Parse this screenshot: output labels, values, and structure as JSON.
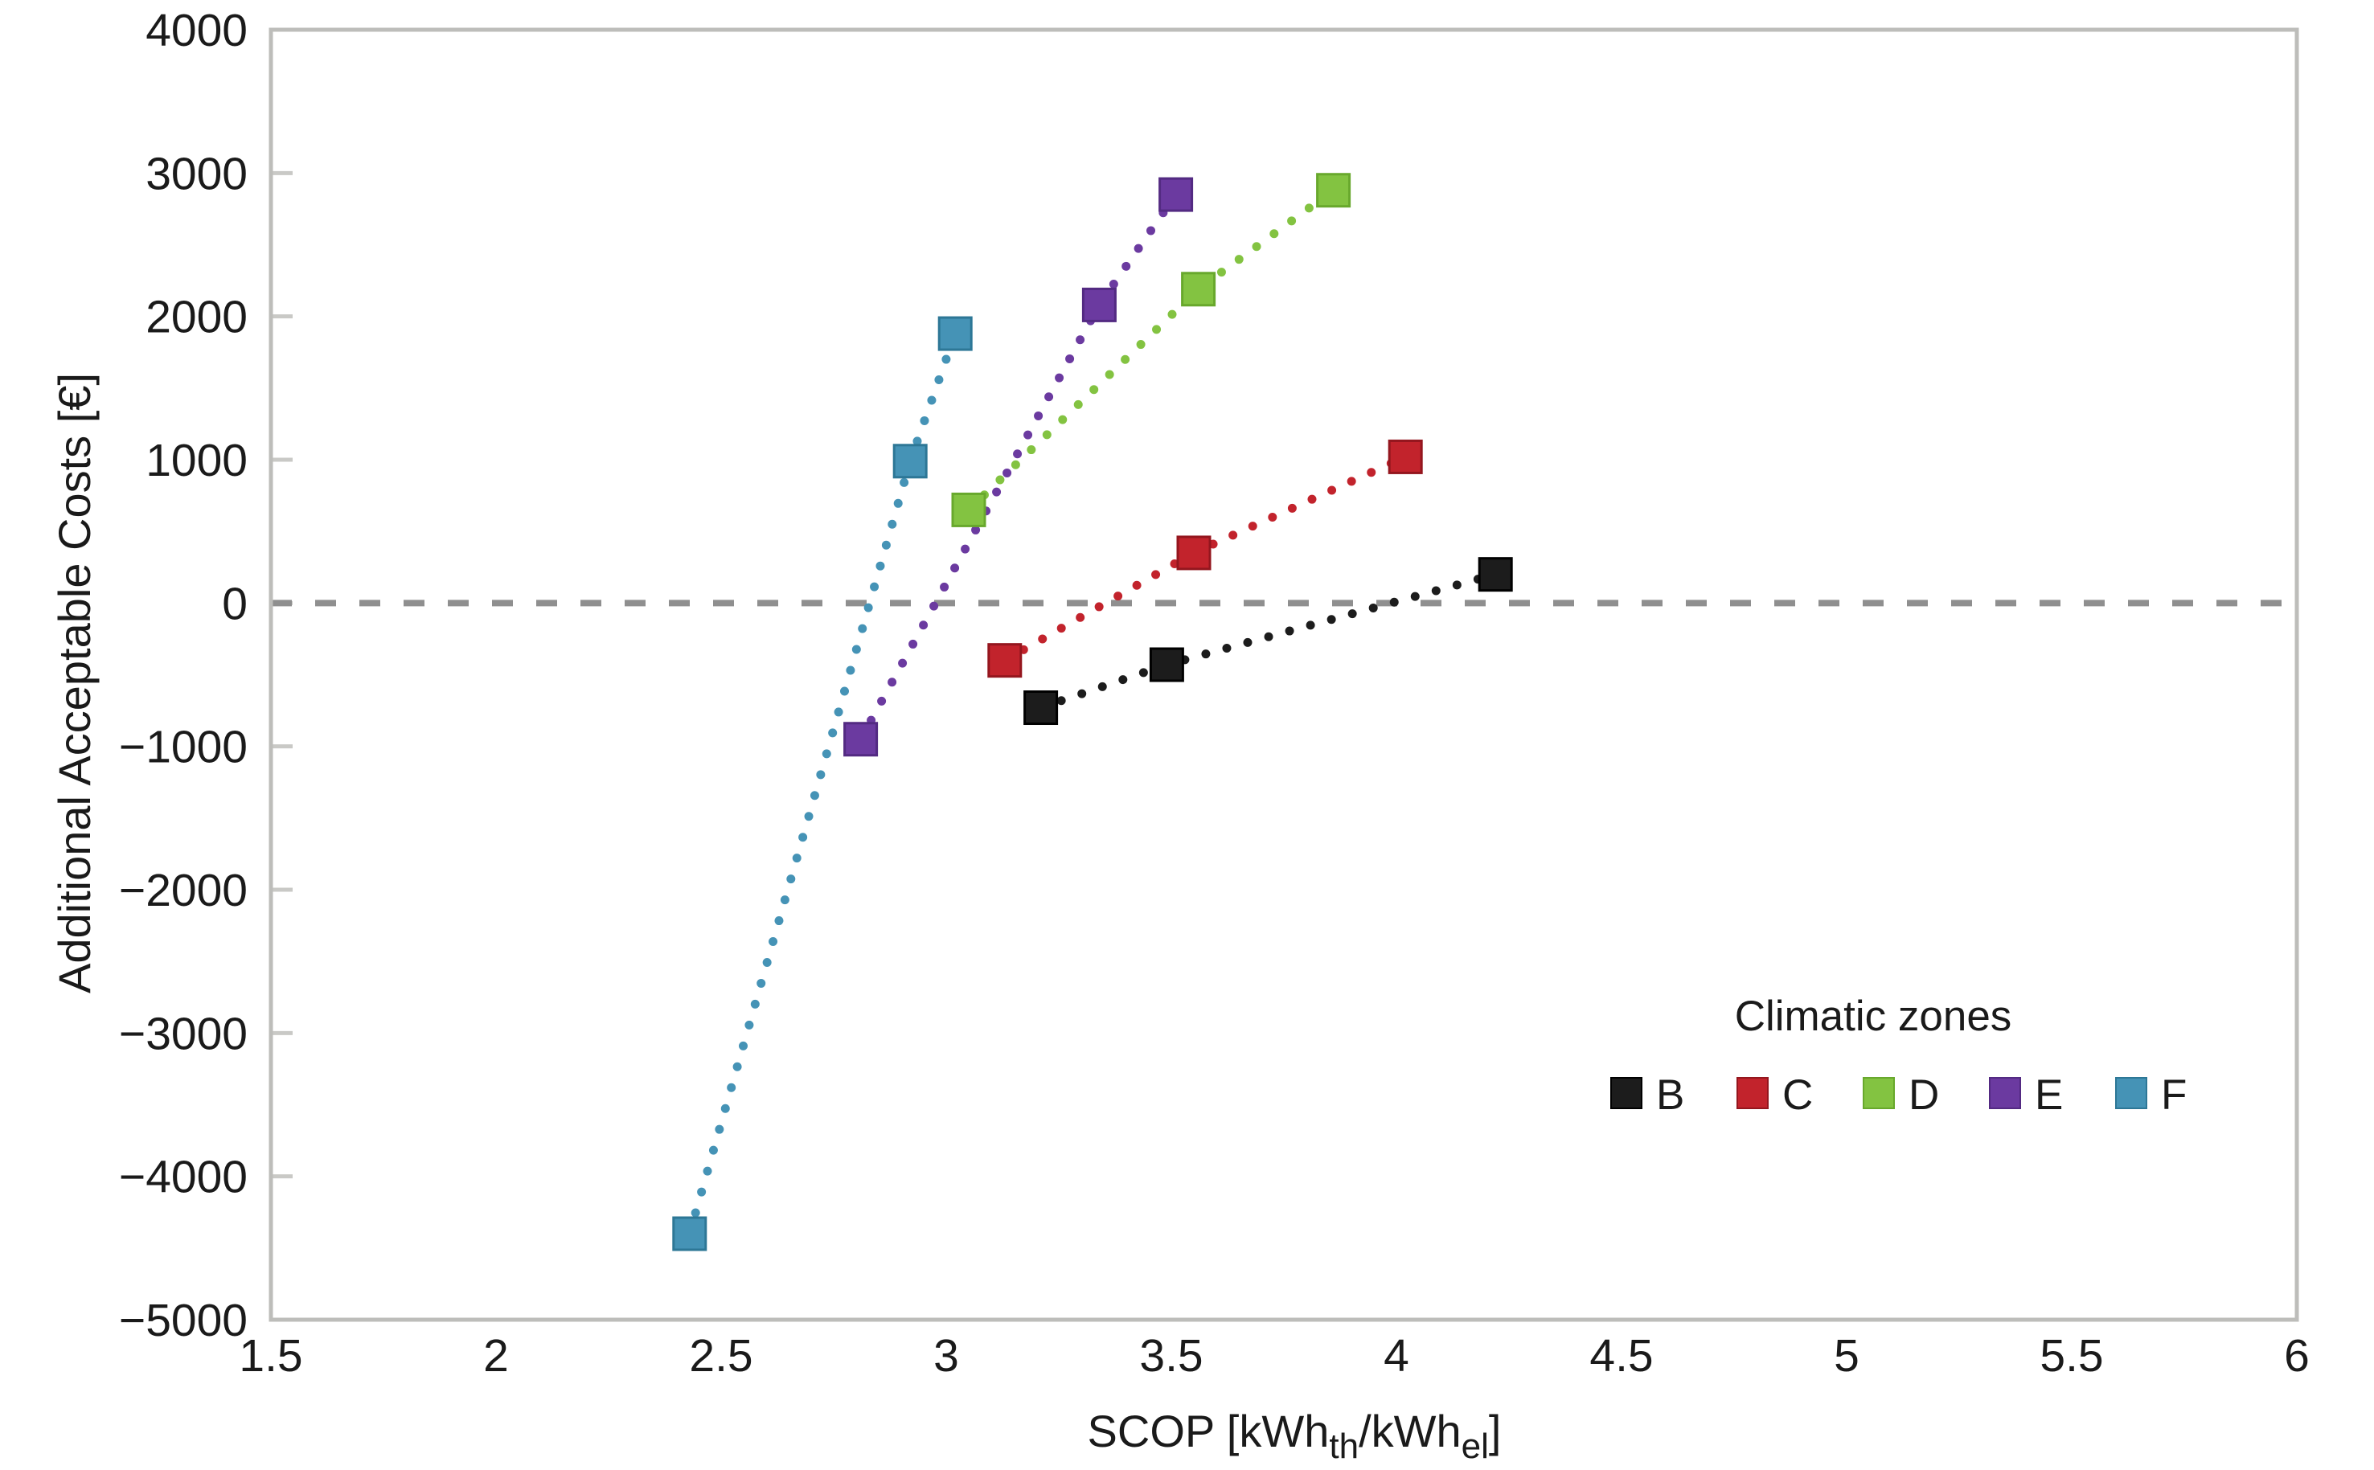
{
  "figure": {
    "background": "#ffffff",
    "frame_color": "#bdbdba",
    "tick_color": "#c9c9c6",
    "text_color": "#1a1a1a"
  },
  "chart_data": {
    "type": "scatter",
    "title": "",
    "xlabel": "SCOP [kWhth/kWhel]",
    "xlabel_parts": [
      {
        "text": "SCOP [kWh",
        "sub": false
      },
      {
        "text": "th",
        "sub": true
      },
      {
        "text": "/kWh",
        "sub": false
      },
      {
        "text": "el",
        "sub": true
      },
      {
        "text": "]",
        "sub": false
      }
    ],
    "ylabel": "Additional Acceptable Costs [€]",
    "xlim": [
      1.5,
      6
    ],
    "ylim": [
      -5000,
      4000
    ],
    "grid": false,
    "xticks": [
      {
        "v": 1.5,
        "label": "1.5"
      },
      {
        "v": 2,
        "label": "2"
      },
      {
        "v": 2.5,
        "label": "2.5"
      },
      {
        "v": 3,
        "label": "3"
      },
      {
        "v": 3.5,
        "label": "3.5"
      },
      {
        "v": 4,
        "label": "4"
      },
      {
        "v": 4.5,
        "label": "4.5"
      },
      {
        "v": 5,
        "label": "5"
      },
      {
        "v": 5.5,
        "label": "5.5"
      },
      {
        "v": 6,
        "label": "6"
      }
    ],
    "yticks": [
      {
        "v": 4000,
        "label": "4000"
      },
      {
        "v": 3000,
        "label": "3000"
      },
      {
        "v": 2000,
        "label": "2000"
      },
      {
        "v": 1000,
        "label": "1000"
      },
      {
        "v": 0,
        "label": "0"
      },
      {
        "v": -1000,
        "label": "−1000"
      },
      {
        "v": -2000,
        "label": "−2000"
      },
      {
        "v": -3000,
        "label": "−3000"
      },
      {
        "v": -4000,
        "label": "−4000"
      },
      {
        "v": -5000,
        "label": "−5000"
      }
    ],
    "zero_line": {
      "y": 0,
      "style": "dashed",
      "color": "#8f8f8f"
    },
    "legend_title": "Climatic zones",
    "legend_position": "inside-lower-right",
    "marker": "square",
    "line_style": "dotted",
    "series": [
      {
        "name": "B",
        "color": "#1c1c1c",
        "edge": "#000000",
        "points": [
          [
            3.21,
            -730
          ],
          [
            3.49,
            -430
          ],
          [
            4.22,
            200
          ]
        ]
      },
      {
        "name": "C",
        "color": "#c2232c",
        "edge": "#94161e",
        "points": [
          [
            3.13,
            -400
          ],
          [
            3.55,
            350
          ],
          [
            4.02,
            1020
          ]
        ]
      },
      {
        "name": "D",
        "color": "#83c341",
        "edge": "#68a82c",
        "points": [
          [
            3.05,
            650
          ],
          [
            3.56,
            2190
          ],
          [
            3.86,
            2880
          ]
        ]
      },
      {
        "name": "E",
        "color": "#6b3aa0",
        "edge": "#532a82",
        "points": [
          [
            2.81,
            -950
          ],
          [
            3.34,
            2080
          ],
          [
            3.51,
            2850
          ]
        ]
      },
      {
        "name": "F",
        "color": "#4593b6",
        "edge": "#2d7796",
        "points": [
          [
            2.43,
            -4400
          ],
          [
            2.92,
            990
          ],
          [
            3.02,
            1880
          ]
        ]
      }
    ]
  }
}
